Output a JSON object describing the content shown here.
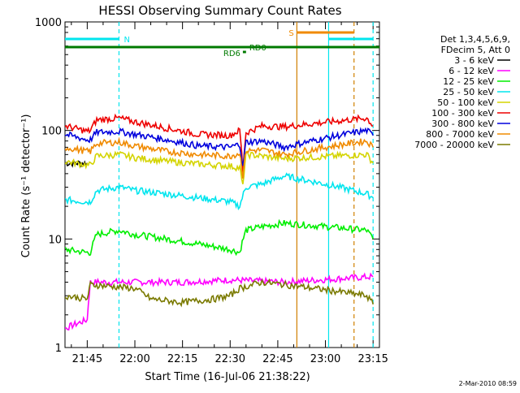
{
  "chart_data": {
    "type": "line",
    "title": "HESSI Observing Summary Count Rates",
    "xlabel": "Start Time (16-Jul-06 21:38:22)",
    "ylabel": "Count Rate (s⁻¹ detector⁻¹)",
    "yscale": "log",
    "ylim": [
      1,
      1000
    ],
    "xlim": [
      "21:38",
      "23:17"
    ],
    "x_ticks": [
      "21:45",
      "22:00",
      "22:15",
      "22:30",
      "22:45",
      "23:00",
      "23:15"
    ],
    "y_ticks": [
      "1",
      "10",
      "100",
      "1000"
    ],
    "footer_date": "2-Mar-2010 08:59",
    "legend": {
      "position": "right",
      "header": [
        "Det 1,3,4,5,6,9,",
        "FDecim 5, Att 0"
      ]
    },
    "flags": [
      {
        "label": "N",
        "color": "#00e5ee",
        "segments": [
          [
            "21:38",
            "21:55"
          ],
          [
            "23:01",
            "23:15"
          ]
        ]
      },
      {
        "label": "S",
        "color": "#f08a00",
        "segments": [
          [
            "22:51",
            "23:09"
          ]
        ]
      },
      {
        "label": "RD0",
        "color": "#007a00",
        "segments": [
          [
            "21:38",
            "23:17"
          ]
        ]
      },
      {
        "label": "RD6",
        "color": "#007a00",
        "segments": [
          [
            "22:34",
            "22:35"
          ]
        ]
      }
    ],
    "series": [
      {
        "name": "3 - 6 keV",
        "color": "#000000",
        "points": [
          [
            "21:38",
            50
          ],
          [
            "21:45",
            50
          ]
        ]
      },
      {
        "name": "6 - 12 keV",
        "color": "#ff00ff",
        "points": [
          [
            "21:38",
            1.5
          ],
          [
            "21:45",
            1.8
          ],
          [
            "21:46",
            4.0
          ],
          [
            "22:00",
            4.0
          ],
          [
            "22:15",
            4.0
          ],
          [
            "22:30",
            4.2
          ],
          [
            "22:47",
            4.0
          ],
          [
            "23:15",
            4.5
          ]
        ]
      },
      {
        "name": "12 - 25 keV",
        "color": "#00ee00",
        "points": [
          [
            "21:38",
            8
          ],
          [
            "21:45",
            7.5
          ],
          [
            "21:46",
            7.5
          ],
          [
            "21:48",
            11
          ],
          [
            "21:55",
            12
          ],
          [
            "22:00",
            11
          ],
          [
            "22:10",
            10
          ],
          [
            "22:20",
            9
          ],
          [
            "22:30",
            8
          ],
          [
            "22:33",
            7.5
          ],
          [
            "22:35",
            12
          ],
          [
            "22:40",
            13
          ],
          [
            "22:47",
            14
          ],
          [
            "23:13",
            12
          ],
          [
            "23:15",
            10
          ]
        ]
      },
      {
        "name": "25 - 50 keV",
        "color": "#00e5ee",
        "points": [
          [
            "21:38",
            23
          ],
          [
            "21:45",
            22
          ],
          [
            "21:46",
            22
          ],
          [
            "21:48",
            28
          ],
          [
            "21:55",
            30
          ],
          [
            "22:00",
            28
          ],
          [
            "22:10",
            26
          ],
          [
            "22:20",
            24
          ],
          [
            "22:30",
            22
          ],
          [
            "22:33",
            20
          ],
          [
            "22:35",
            30
          ],
          [
            "22:40",
            32
          ],
          [
            "22:47",
            38
          ],
          [
            "23:13",
            26
          ],
          [
            "23:15",
            24
          ]
        ]
      },
      {
        "name": "50 - 100 keV",
        "color": "#d4d400",
        "points": [
          [
            "21:38",
            52
          ],
          [
            "21:45",
            48
          ],
          [
            "21:46",
            48
          ],
          [
            "21:48",
            58
          ],
          [
            "21:55",
            60
          ],
          [
            "22:00",
            56
          ],
          [
            "22:10",
            52
          ],
          [
            "22:20",
            49
          ],
          [
            "22:30",
            47
          ],
          [
            "22:33",
            45
          ],
          [
            "22:34",
            30
          ],
          [
            "22:35",
            60
          ],
          [
            "22:40",
            58
          ],
          [
            "22:47",
            55
          ],
          [
            "23:13",
            60
          ],
          [
            "23:15",
            50
          ]
        ]
      },
      {
        "name": "100 - 300 keV",
        "color": "#ee0000",
        "points": [
          [
            "21:38",
            110
          ],
          [
            "21:45",
            98
          ],
          [
            "21:46",
            100
          ],
          [
            "21:48",
            125
          ],
          [
            "21:55",
            130
          ],
          [
            "22:00",
            120
          ],
          [
            "22:10",
            105
          ],
          [
            "22:20",
            92
          ],
          [
            "22:30",
            90
          ],
          [
            "22:33",
            100
          ],
          [
            "22:34",
            40
          ],
          [
            "22:35",
            95
          ],
          [
            "22:40",
            110
          ],
          [
            "22:47",
            108
          ],
          [
            "23:13",
            130
          ],
          [
            "23:15",
            110
          ]
        ]
      },
      {
        "name": "300 - 800 keV",
        "color": "#0000dd",
        "points": [
          [
            "21:38",
            92
          ],
          [
            "21:45",
            82
          ],
          [
            "21:46",
            82
          ],
          [
            "21:48",
            96
          ],
          [
            "21:55",
            98
          ],
          [
            "22:00",
            92
          ],
          [
            "22:10",
            82
          ],
          [
            "22:20",
            72
          ],
          [
            "22:30",
            70
          ],
          [
            "22:33",
            75
          ],
          [
            "22:34",
            45
          ],
          [
            "22:35",
            78
          ],
          [
            "22:40",
            80
          ],
          [
            "22:47",
            70
          ],
          [
            "23:13",
            100
          ],
          [
            "23:15",
            90
          ]
        ]
      },
      {
        "name": "800 - 7000 keV",
        "color": "#f08a00",
        "points": [
          [
            "21:38",
            70
          ],
          [
            "21:45",
            64
          ],
          [
            "21:46",
            64
          ],
          [
            "21:48",
            76
          ],
          [
            "21:55",
            78
          ],
          [
            "22:00",
            72
          ],
          [
            "22:10",
            64
          ],
          [
            "22:20",
            60
          ],
          [
            "22:30",
            58
          ],
          [
            "22:33",
            62
          ],
          [
            "22:34",
            38
          ],
          [
            "22:35",
            65
          ],
          [
            "22:40",
            66
          ],
          [
            "22:47",
            60
          ],
          [
            "23:13",
            80
          ],
          [
            "23:15",
            70
          ]
        ]
      },
      {
        "name": "7000 - 20000 keV",
        "color": "#7a7a00",
        "points": [
          [
            "21:38",
            3.0
          ],
          [
            "21:45",
            2.8
          ],
          [
            "21:46",
            3.8
          ],
          [
            "22:00",
            3.5
          ],
          [
            "22:05",
            2.8
          ],
          [
            "22:15",
            2.6
          ],
          [
            "22:25",
            2.8
          ],
          [
            "22:30",
            3.0
          ],
          [
            "22:33",
            3.5
          ],
          [
            "22:40",
            4.0
          ],
          [
            "22:47",
            3.8
          ],
          [
            "23:13",
            3.0
          ],
          [
            "23:15",
            2.5
          ]
        ]
      }
    ]
  }
}
